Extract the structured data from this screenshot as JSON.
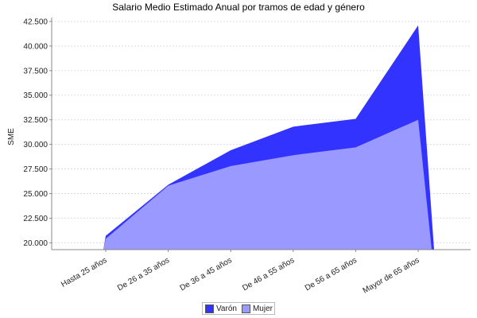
{
  "chart_data": {
    "type": "area",
    "title": "Salario Medio Estimado Anual por tramos de edad y género",
    "xlabel": "",
    "ylabel": "SME",
    "categories": [
      "Hasta 25  años",
      "De 26  a 35  años",
      "De 36  a 45  años",
      "De 46 a 55  años",
      "De 56  a 65  años",
      "Mayor de 65  años"
    ],
    "ylim": [
      19300,
      42900
    ],
    "y_ticks": [
      "20.000",
      "22.500",
      "25.000",
      "27.500",
      "30.000",
      "32.500",
      "35.000",
      "37.500",
      "40.000",
      "42.500"
    ],
    "y_tick_values": [
      20000,
      22500,
      25000,
      27500,
      30000,
      32500,
      35000,
      37500,
      40000,
      42500
    ],
    "series": [
      {
        "name": "Varón",
        "color": "#3333ff",
        "values": [
          20700,
          25900,
          29400,
          31800,
          32600,
          42100
        ]
      },
      {
        "name": "Mujer",
        "color": "#9999ff",
        "values": [
          20400,
          25800,
          27800,
          28900,
          29700,
          32500
        ]
      }
    ],
    "grid": true,
    "legend_position": "bottom"
  }
}
